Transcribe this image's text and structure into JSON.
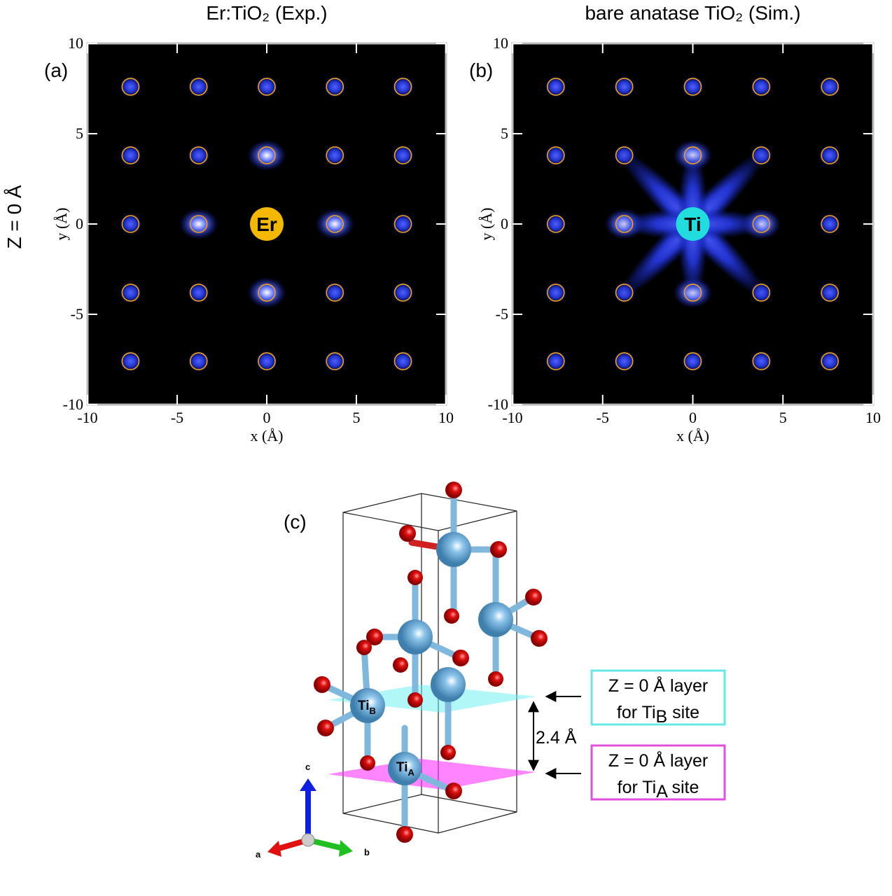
{
  "chart_data": [
    {
      "type": "scatter",
      "title": "Er:TiO₂ (Exp.)",
      "panel_label": "(a)",
      "x_label": "x (Å)",
      "y_label": "y (Å)",
      "xlim": [
        -10,
        10
      ],
      "ylim": [
        -10,
        10
      ],
      "xticks": [
        -10,
        -5,
        0,
        5,
        10
      ],
      "yticks": [
        -10,
        -5,
        0,
        5,
        10
      ],
      "color": "#f0a020",
      "glow": "#4455ff",
      "x": [
        -7.6,
        -3.8,
        0,
        3.8,
        7.6,
        -7.6,
        -3.8,
        0,
        3.8,
        7.6,
        -7.6,
        -3.8,
        3.8,
        7.6,
        -7.6,
        -3.8,
        0,
        3.8,
        7.6,
        -7.6,
        -3.8,
        0,
        3.8,
        7.6
      ],
      "y": [
        7.6,
        7.6,
        7.6,
        7.6,
        7.6,
        3.8,
        3.8,
        3.8,
        3.8,
        3.8,
        0,
        0,
        0,
        0,
        -3.8,
        -3.8,
        -3.8,
        -3.8,
        -3.8,
        -7.6,
        -7.6,
        -7.6,
        -7.6,
        -7.6
      ],
      "annotations": [
        {
          "text": "Er",
          "x": 0,
          "y": 0,
          "color": "#f5b800"
        }
      ]
    },
    {
      "type": "scatter",
      "title": "bare anatase TiO₂ (Sim.)",
      "panel_label": "(b)",
      "x_label": "x (Å)",
      "y_label": "y (Å)",
      "xlim": [
        -10,
        10
      ],
      "ylim": [
        -10,
        10
      ],
      "xticks": [
        -10,
        -5,
        0,
        5,
        10
      ],
      "yticks": [
        -10,
        -5,
        0,
        5,
        10
      ],
      "color": "#f0a020",
      "glow": "#4455ff",
      "star": true,
      "x": [
        -7.6,
        -3.8,
        0,
        3.8,
        7.6,
        -7.6,
        -3.8,
        0,
        3.8,
        7.6,
        -7.6,
        -3.8,
        3.8,
        7.6,
        -7.6,
        -3.8,
        0,
        3.8,
        7.6,
        -7.6,
        -3.8,
        0,
        3.8,
        7.6
      ],
      "y": [
        7.6,
        7.6,
        7.6,
        7.6,
        7.6,
        3.8,
        3.8,
        3.8,
        3.8,
        3.8,
        0,
        0,
        0,
        0,
        -3.8,
        -3.8,
        -3.8,
        -3.8,
        -3.8,
        -7.6,
        -7.6,
        -7.6,
        -7.6,
        -7.6
      ],
      "annotations": [
        {
          "text": "Ti",
          "x": 0,
          "y": 0,
          "color": "#22dddd"
        }
      ]
    }
  ],
  "row_label": "Z = 0 Å",
  "panel_c": {
    "label": "(c)",
    "ti_b": {
      "main": "Ti",
      "sub": "B"
    },
    "ti_a": {
      "main": "Ti",
      "sub": "A"
    },
    "distance": "2.4 Å",
    "box_b": {
      "line1": "Z = 0 Å layer",
      "pre": "for Ti",
      "sub": "B",
      "post": " site"
    },
    "box_a": {
      "line1": "Z = 0 Å layer",
      "pre": "for Ti",
      "sub": "A",
      "post": " site"
    },
    "axes": {
      "a": "a",
      "b": "b",
      "c": "c"
    }
  }
}
